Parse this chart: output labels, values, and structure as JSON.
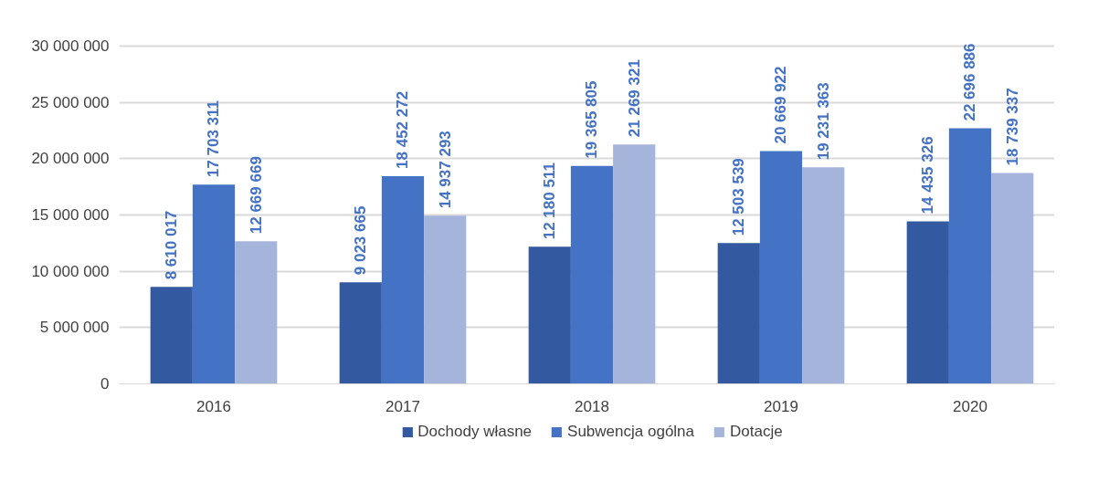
{
  "chart_data": {
    "type": "bar",
    "categories": [
      "2016",
      "2017",
      "2018",
      "2019",
      "2020"
    ],
    "series": [
      {
        "name": "Dochody własne",
        "color": "#335aa1",
        "values": [
          8610017,
          9023665,
          12180511,
          12503539,
          14435326
        ],
        "value_labels": [
          "8 610 017",
          "9 023 665",
          "12 180 511",
          "12 503 539",
          "14 435 326"
        ]
      },
      {
        "name": "Subwencja ogólna",
        "color": "#4472c4",
        "values": [
          17703311,
          18452272,
          19365805,
          20669922,
          22696886
        ],
        "value_labels": [
          "17 703 311",
          "18 452 272",
          "19 365 805",
          "20 669 922",
          "22 696 886"
        ]
      },
      {
        "name": "Dotacje",
        "color": "#a5b4da",
        "values": [
          12669669,
          14937293,
          21269321,
          19231363,
          18739337
        ],
        "value_labels": [
          "12 669 669",
          "14 937 293",
          "21 269 321",
          "19 231 363",
          "18 739 337"
        ]
      }
    ],
    "ylim": [
      0,
      30000000
    ],
    "yticks": [
      {
        "value": 0,
        "label": "0"
      },
      {
        "value": 5000000,
        "label": "5 000 000"
      },
      {
        "value": 10000000,
        "label": "10 000 000"
      },
      {
        "value": 15000000,
        "label": "15 000 000"
      },
      {
        "value": 20000000,
        "label": "20 000 000"
      },
      {
        "value": 25000000,
        "label": "25 000 000"
      },
      {
        "value": 30000000,
        "label": "30 000 000"
      }
    ],
    "grid": "y",
    "legend": "bottom"
  }
}
